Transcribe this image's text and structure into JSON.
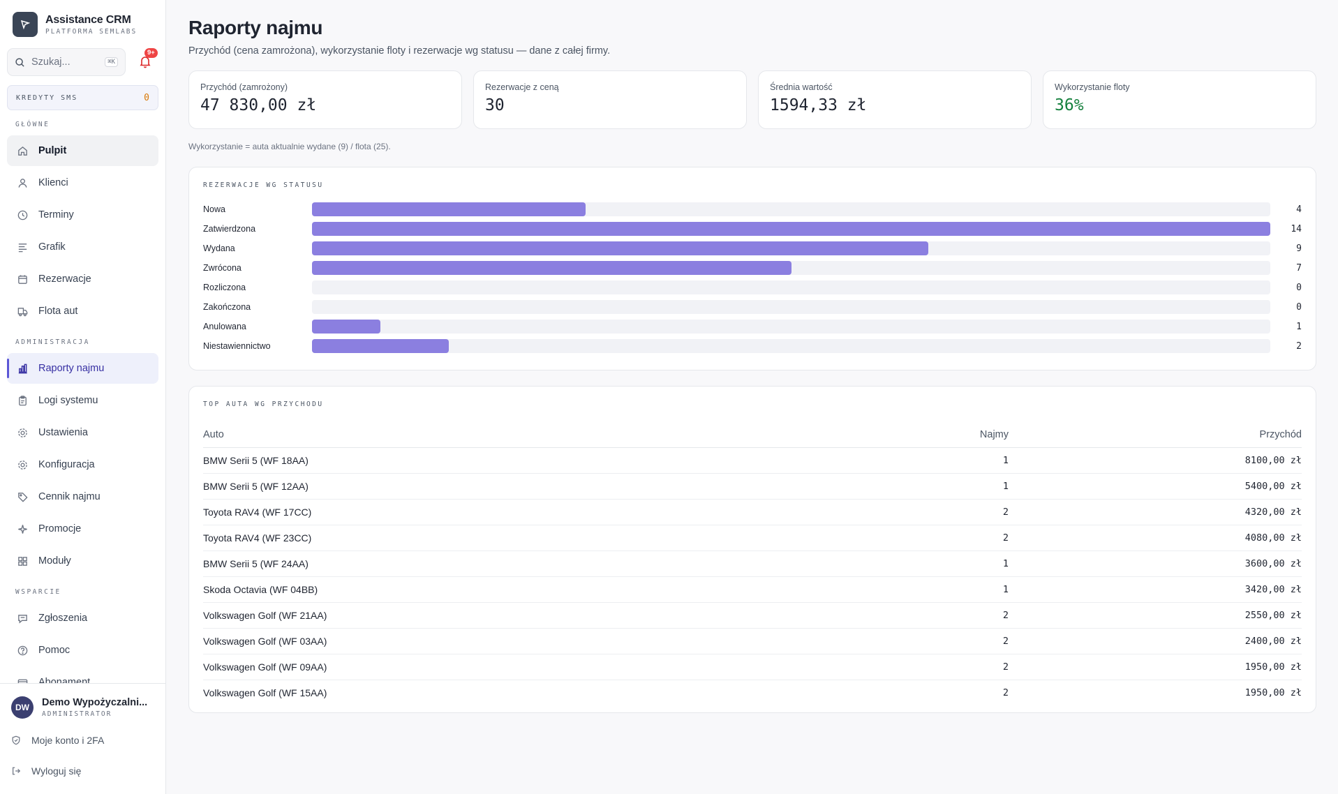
{
  "sidebar": {
    "brand_name": "Assistance CRM",
    "brand_sub": "PLATFORMA SEMLABS",
    "search_placeholder": "Szukaj...",
    "search_shortcut": "⌘K",
    "notif_badge": "9+",
    "credits_label": "KREDYTY SMS",
    "credits_value": "0",
    "sections": {
      "main": "GŁÓWNE",
      "admin": "ADMINISTRACJA",
      "support": "WSPARCIE"
    },
    "items": {
      "pulpit": "Pulpit",
      "klienci": "Klienci",
      "terminy": "Terminy",
      "grafik": "Grafik",
      "rezerwacje": "Rezerwacje",
      "flota": "Flota aut",
      "raporty": "Raporty najmu",
      "logi": "Logi systemu",
      "ustawienia": "Ustawienia",
      "konfiguracja": "Konfiguracja",
      "cennik": "Cennik najmu",
      "promocje": "Promocje",
      "moduly": "Moduły",
      "zgloszenia": "Zgłoszenia",
      "pomoc": "Pomoc",
      "abonament": "Abonament"
    },
    "user": {
      "initials": "DW",
      "name": "Demo Wypożyczalni...",
      "role": "ADMINISTRATOR",
      "account_link": "Moje konto i 2FA",
      "logout_link": "Wyloguj się"
    }
  },
  "page": {
    "title": "Raporty najmu",
    "subtitle": "Przychód (cena zamrożona), wykorzystanie floty i rezerwacje wg statusu — dane z całej firmy.",
    "kpis": [
      {
        "label": "Przychód (zamrożony)",
        "value": "47 830,00 zł"
      },
      {
        "label": "Rezerwacje z ceną",
        "value": "30"
      },
      {
        "label": "Średnia wartość",
        "value": "1594,33 zł"
      },
      {
        "label": "Wykorzystanie floty",
        "value": "36%"
      }
    ],
    "note": "Wykorzystanie = auta aktualnie wydane (9) / flota (25).",
    "status_card_title": "REZERWACJE WG STATUSU",
    "top_card_title": "TOP AUTA WG PRZYCHODU",
    "table_headers": {
      "auto": "Auto",
      "najmy": "Najmy",
      "przychod": "Przychód"
    }
  },
  "chart_data": {
    "type": "bar",
    "title": "REZERWACJE WG STATUSU",
    "orientation": "horizontal",
    "categories": [
      "Nowa",
      "Zatwierdzona",
      "Wydana",
      "Zwrócona",
      "Rozliczona",
      "Zakończona",
      "Anulowana",
      "Niestawiennictwo"
    ],
    "values": [
      4,
      14,
      9,
      7,
      0,
      0,
      1,
      2
    ],
    "xlim": [
      0,
      14
    ],
    "color": "#8b7fe0"
  },
  "top_cars": [
    {
      "auto": "BMW Serii 5 (WF 18AA)",
      "najmy": "1",
      "przychod": "8100,00 zł"
    },
    {
      "auto": "BMW Serii 5 (WF 12AA)",
      "najmy": "1",
      "przychod": "5400,00 zł"
    },
    {
      "auto": "Toyota RAV4 (WF 17CC)",
      "najmy": "2",
      "przychod": "4320,00 zł"
    },
    {
      "auto": "Toyota RAV4 (WF 23CC)",
      "najmy": "2",
      "przychod": "4080,00 zł"
    },
    {
      "auto": "BMW Serii 5 (WF 24AA)",
      "najmy": "1",
      "przychod": "3600,00 zł"
    },
    {
      "auto": "Skoda Octavia (WF 04BB)",
      "najmy": "1",
      "przychod": "3420,00 zł"
    },
    {
      "auto": "Volkswagen Golf (WF 21AA)",
      "najmy": "2",
      "przychod": "2550,00 zł"
    },
    {
      "auto": "Volkswagen Golf (WF 03AA)",
      "najmy": "2",
      "przychod": "2400,00 zł"
    },
    {
      "auto": "Volkswagen Golf (WF 09AA)",
      "najmy": "2",
      "przychod": "1950,00 zł"
    },
    {
      "auto": "Volkswagen Golf (WF 15AA)",
      "najmy": "2",
      "przychod": "1950,00 zł"
    }
  ],
  "colors": {
    "accent": "#5b56d6",
    "bar": "#8b7fe0",
    "positive": "#15803d",
    "credits": "#d97706",
    "badge": "#ef4444"
  }
}
